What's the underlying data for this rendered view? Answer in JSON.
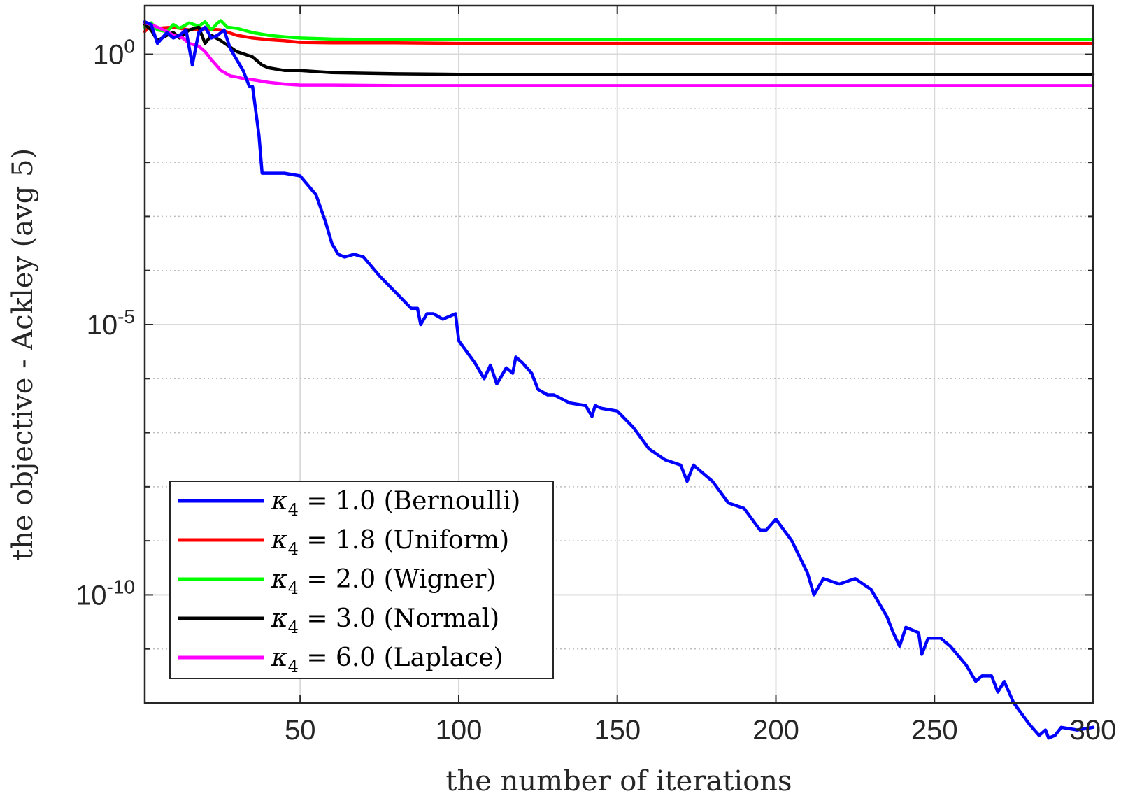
{
  "chart_data": {
    "type": "line",
    "xlabel": "the number of iterations",
    "ylabel": "the objective - Ackley (avg 5)",
    "xlim": [
      1,
      300
    ],
    "ylim_log10": [
      -12,
      0.9
    ],
    "yscale": "log",
    "grid": true,
    "legend_position": "bottom-left",
    "x_ticks": [
      50,
      100,
      150,
      200,
      250,
      300
    ],
    "x_tick_labels": [
      "50",
      "100",
      "150",
      "200",
      "250",
      "300"
    ],
    "y_ticks_log10": [
      0,
      -5,
      -10
    ],
    "y_tick_labels": [
      {
        "base": "10",
        "exp": "0"
      },
      {
        "base": "10",
        "exp": "-5"
      },
      {
        "base": "10",
        "exp": "-10"
      }
    ],
    "series": [
      {
        "name": "κ4 = 1.0 (Bernoulli)",
        "legend_kappa": "κ",
        "legend_sub": "4",
        "legend_rest": " = 1.0 (Bernoulli)",
        "color": "#0000ff",
        "x": [
          1,
          3,
          5,
          8,
          10,
          12,
          14,
          16,
          18,
          20,
          22,
          24,
          26,
          28,
          30,
          32,
          34,
          35,
          37,
          38,
          40,
          45,
          50,
          55,
          58,
          60,
          62,
          64,
          67,
          70,
          75,
          80,
          85,
          87,
          88,
          90,
          92,
          95,
          99,
          100,
          105,
          108,
          110,
          112,
          115,
          117,
          118,
          120,
          123,
          125,
          128,
          130,
          135,
          140,
          142,
          143,
          145,
          150,
          155,
          160,
          165,
          170,
          172,
          174,
          180,
          185,
          190,
          195,
          197,
          200,
          205,
          210,
          211,
          212,
          215,
          220,
          225,
          230,
          235,
          237,
          239,
          241,
          245,
          246,
          248,
          252,
          255,
          260,
          263,
          265,
          268,
          270,
          272,
          275,
          280,
          283,
          285,
          286,
          288,
          290,
          295,
          300
        ],
        "values_log10": [
          0.6,
          0.55,
          0.2,
          0.4,
          0.3,
          0.35,
          0.45,
          -0.2,
          0.4,
          0.5,
          0.3,
          0.35,
          0.45,
          0.1,
          -0.1,
          -0.3,
          -0.6,
          -0.6,
          -1.5,
          -2.2,
          -2.2,
          -2.2,
          -2.25,
          -2.6,
          -3.1,
          -3.5,
          -3.7,
          -3.75,
          -3.7,
          -3.75,
          -4.1,
          -4.4,
          -4.7,
          -4.7,
          -5.0,
          -4.8,
          -4.8,
          -4.9,
          -4.8,
          -5.3,
          -5.7,
          -6.0,
          -5.75,
          -6.1,
          -5.8,
          -5.9,
          -5.6,
          -5.7,
          -5.9,
          -6.2,
          -6.3,
          -6.3,
          -6.45,
          -6.5,
          -6.7,
          -6.5,
          -6.55,
          -6.6,
          -6.9,
          -7.3,
          -7.5,
          -7.6,
          -7.9,
          -7.6,
          -7.9,
          -8.3,
          -8.4,
          -8.8,
          -8.8,
          -8.6,
          -9.0,
          -9.6,
          -9.8,
          -10.0,
          -9.7,
          -9.8,
          -9.7,
          -9.9,
          -10.4,
          -10.7,
          -10.95,
          -10.6,
          -10.7,
          -11.1,
          -10.8,
          -10.8,
          -10.95,
          -11.3,
          -11.6,
          -11.5,
          -11.5,
          -11.8,
          -11.6,
          -12.0,
          -12.4,
          -12.6,
          -12.5,
          -12.65,
          -12.6,
          -12.45,
          -12.5,
          -12.45
        ]
      },
      {
        "name": "κ4 = 1.8 (Uniform)",
        "legend_kappa": "κ",
        "legend_sub": "4",
        "legend_rest": " = 1.8 (Uniform)",
        "color": "#ff0000",
        "x": [
          1,
          3,
          5,
          10,
          15,
          20,
          25,
          30,
          35,
          40,
          45,
          50,
          60,
          80,
          100,
          150,
          200,
          250,
          300
        ],
        "values_log10": [
          0.42,
          0.55,
          0.48,
          0.5,
          0.45,
          0.47,
          0.45,
          0.35,
          0.3,
          0.27,
          0.25,
          0.22,
          0.21,
          0.21,
          0.2,
          0.2,
          0.2,
          0.2,
          0.2
        ]
      },
      {
        "name": "κ4 = 2.0 (Wigner)",
        "legend_kappa": "κ",
        "legend_sub": "4",
        "legend_rest": " = 2.0 (Wigner)",
        "color": "#00ff00",
        "x": [
          1,
          3,
          5,
          8,
          10,
          12,
          15,
          18,
          20,
          22,
          24,
          25,
          27,
          30,
          35,
          40,
          45,
          50,
          60,
          80,
          100,
          150,
          200,
          250,
          300
        ],
        "values_log10": [
          0.5,
          0.58,
          0.45,
          0.42,
          0.55,
          0.48,
          0.58,
          0.52,
          0.6,
          0.45,
          0.58,
          0.62,
          0.5,
          0.48,
          0.4,
          0.35,
          0.32,
          0.3,
          0.28,
          0.27,
          0.27,
          0.27,
          0.27,
          0.27,
          0.27
        ]
      },
      {
        "name": "κ4 = 3.0 (Normal)",
        "legend_kappa": "κ",
        "legend_sub": "4",
        "legend_rest": " = 3.0 (Normal)",
        "color": "#000000",
        "x": [
          1,
          3,
          5,
          8,
          10,
          12,
          15,
          18,
          20,
          22,
          25,
          30,
          35,
          38,
          40,
          45,
          50,
          60,
          80,
          100,
          150,
          200,
          250,
          300
        ],
        "values_log10": [
          0.55,
          0.45,
          0.25,
          0.35,
          0.4,
          0.3,
          0.45,
          0.5,
          0.2,
          0.35,
          0.25,
          0.05,
          -0.05,
          -0.2,
          -0.25,
          -0.3,
          -0.3,
          -0.34,
          -0.36,
          -0.37,
          -0.37,
          -0.37,
          -0.37,
          -0.37
        ]
      },
      {
        "name": "κ4 = 6.0 (Laplace)",
        "legend_kappa": "κ",
        "legend_sub": "4",
        "legend_rest": " = 6.0 (Laplace)",
        "color": "#ff00ff",
        "x": [
          1,
          3,
          5,
          8,
          10,
          13,
          15,
          18,
          20,
          22,
          25,
          28,
          30,
          32,
          35,
          40,
          45,
          50,
          60,
          80,
          100,
          150,
          200,
          250,
          300
        ],
        "values_log10": [
          0.58,
          0.55,
          0.5,
          0.42,
          0.35,
          0.3,
          0.2,
          0.15,
          0.05,
          -0.1,
          -0.3,
          -0.4,
          -0.42,
          -0.45,
          -0.47,
          -0.52,
          -0.55,
          -0.57,
          -0.57,
          -0.58,
          -0.58,
          -0.58,
          -0.58,
          -0.58,
          -0.58
        ]
      }
    ]
  }
}
